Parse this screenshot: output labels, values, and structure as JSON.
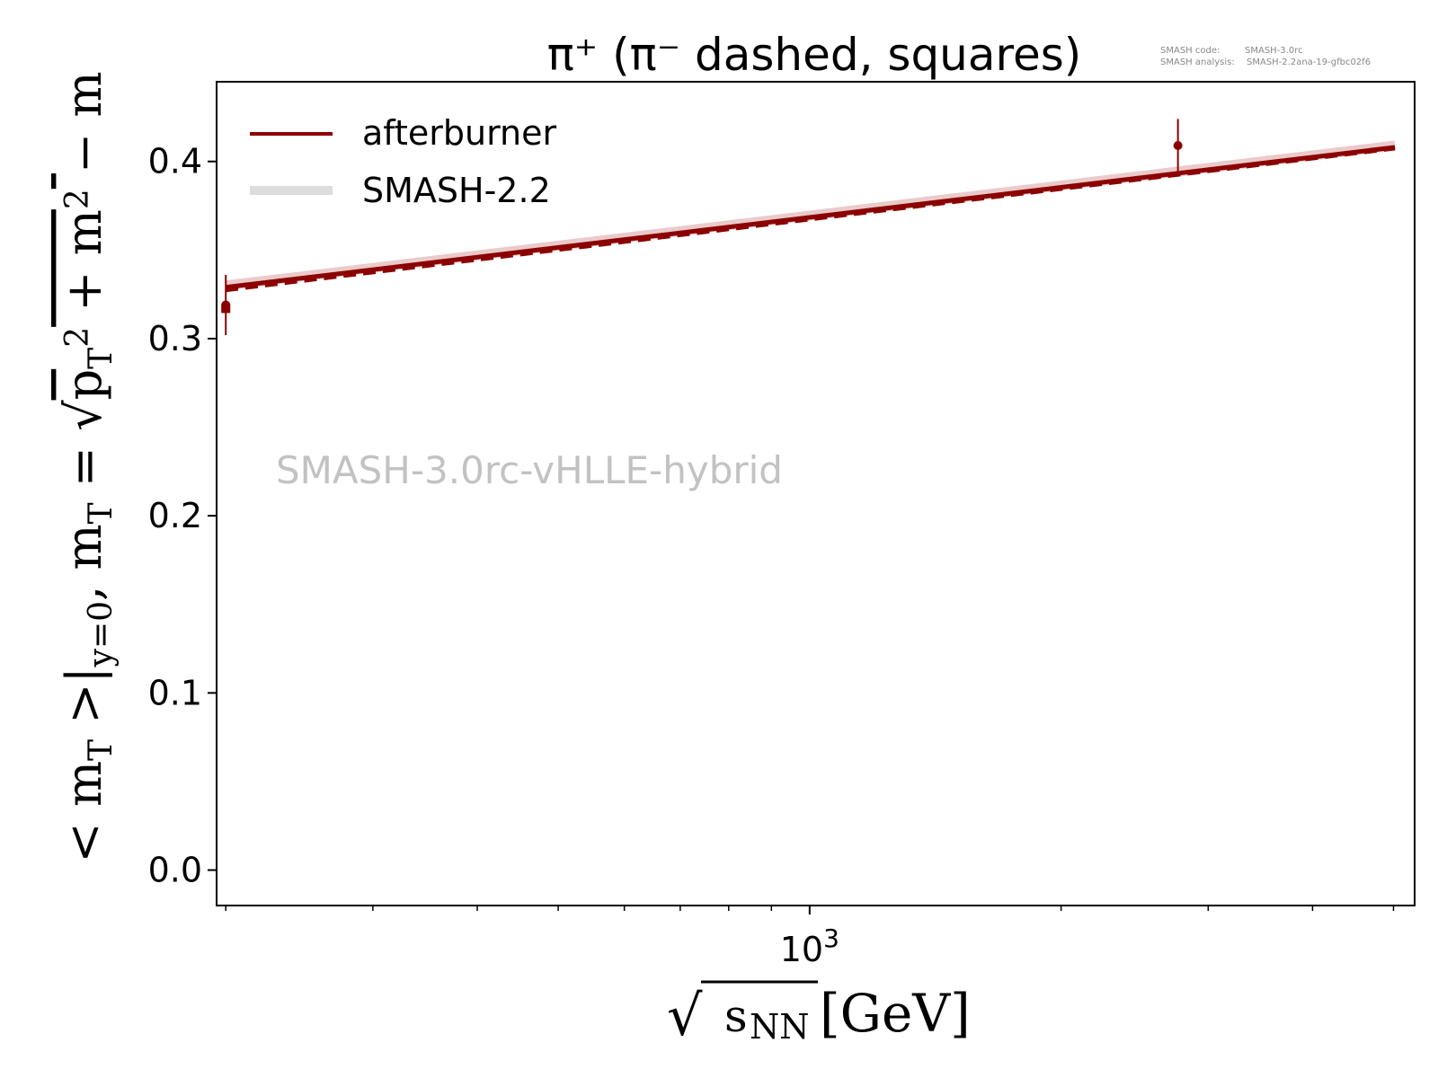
{
  "chart_data": {
    "type": "line",
    "title": "π⁺ (π⁻ dashed, squares)",
    "xlabel": "√sNN [GeV]",
    "ylabel": "< mT >|y=0, mT = √(pT² + m² ) − m",
    "x_scale": "log",
    "xlim": [
      195,
      5300
    ],
    "ylim": [
      -0.02,
      0.445
    ],
    "x_ticks": [
      {
        "value": 1000,
        "label": "10³"
      }
    ],
    "y_ticks": [
      {
        "value": 0.0,
        "label": "0.0"
      },
      {
        "value": 0.1,
        "label": "0.1"
      },
      {
        "value": 0.2,
        "label": "0.2"
      },
      {
        "value": 0.3,
        "label": "0.3"
      },
      {
        "value": 0.4,
        "label": "0.4"
      }
    ],
    "grid": false,
    "legend": "upper-left",
    "series": [
      {
        "name": "afterburner",
        "color": "#8b0000",
        "style": "solid",
        "x": [
          200,
          5020
        ],
        "y": [
          0.329,
          0.408
        ]
      },
      {
        "name": "SMASH-2.2",
        "color": "#dddddd",
        "style": "thick-solid",
        "x": [
          200,
          5020
        ],
        "y": [
          0.33,
          0.409
        ]
      },
      {
        "style": "dashed",
        "color": "#8b0000",
        "x": [
          200,
          5020
        ],
        "y": [
          0.327,
          0.407
        ]
      }
    ],
    "experimental_points": [
      {
        "x": 200,
        "y": 0.319,
        "err": 0.017,
        "marker": "circle"
      },
      {
        "x": 200,
        "y": 0.317,
        "err": 0.0,
        "marker": "square"
      },
      {
        "x": 2760,
        "y": 0.409,
        "err": 0.015,
        "marker": "circle"
      }
    ]
  },
  "annotations": {
    "watermark": "SMASH-3.0rc-vHLLE-hybrid",
    "code_label": "SMASH code:",
    "code_value": "SMASH-3.0rc",
    "analysis_label": "SMASH analysis:",
    "analysis_value": "SMASH-2.2ana-19-gfbc02f6"
  }
}
